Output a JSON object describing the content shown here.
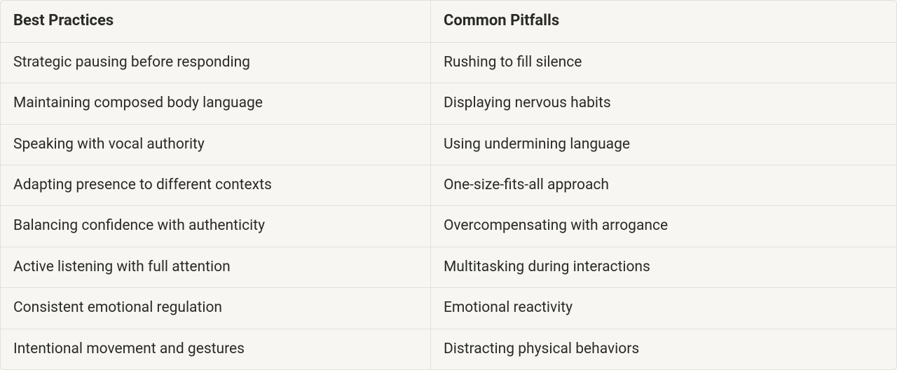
{
  "table": {
    "background_color": "#f7f6f2",
    "border_color": "#e2e0da",
    "text_color": "#2a2a26",
    "header_fontsize": 22,
    "body_fontsize": 21,
    "col_split_percent": 48,
    "columns": [
      "Best Practices",
      "Common Pitfalls"
    ],
    "rows": [
      [
        "Strategic pausing before responding",
        "Rushing to fill silence"
      ],
      [
        "Maintaining composed body language",
        "Displaying nervous habits"
      ],
      [
        "Speaking with vocal authority",
        "Using undermining language"
      ],
      [
        "Adapting presence to different contexts",
        "One-size-fits-all approach"
      ],
      [
        "Balancing confidence with authenticity",
        "Overcompensating with arrogance"
      ],
      [
        "Active listening with full attention",
        "Multitasking during interactions"
      ],
      [
        "Consistent emotional regulation",
        "Emotional reactivity"
      ],
      [
        "Intentional movement and gestures",
        "Distracting physical behaviors"
      ]
    ]
  }
}
